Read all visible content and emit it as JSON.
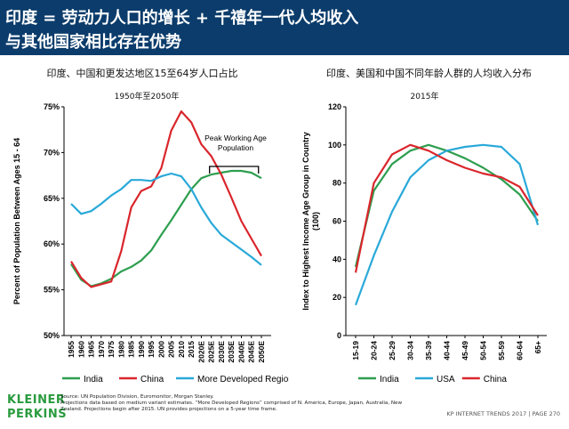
{
  "header": {
    "line1": "印度 = 劳动力人口的增长 + 千禧年一代人均收入",
    "line2": "与其他国家相比存在优势"
  },
  "chart_data": [
    {
      "type": "line",
      "title": "印度、中国和更发达地区15至64岁人口占比",
      "subtitle": "1950年至2050年",
      "ylabel": "Percent of Population Between Ages 15 - 64",
      "ylim": [
        50,
        75
      ],
      "yticks": [
        "50%",
        "55%",
        "60%",
        "65%",
        "70%",
        "75%"
      ],
      "categories": [
        "1955",
        "1960",
        "1965",
        "1970",
        "1975",
        "1980",
        "1985",
        "1990",
        "1995",
        "2000",
        "2005",
        "2010",
        "2015",
        "2020E",
        "2025E",
        "2030E",
        "2035E",
        "2040E",
        "2045E",
        "2050E"
      ],
      "annotation": "Peak Working Age Population",
      "series": [
        {
          "name": "India",
          "color": "#2e9e4f",
          "values": [
            57.8,
            56.1,
            55.4,
            55.7,
            56.2,
            57.0,
            57.5,
            58.2,
            59.3,
            61.0,
            62.6,
            64.3,
            66.0,
            67.2,
            67.6,
            67.8,
            68.0,
            68.0,
            67.8,
            67.2
          ]
        },
        {
          "name": "China",
          "color": "#d9262c",
          "values": [
            58.1,
            56.3,
            55.3,
            55.6,
            55.9,
            59.2,
            64.0,
            65.8,
            66.3,
            68.3,
            72.4,
            74.5,
            73.3,
            70.9,
            69.6,
            67.6,
            65.1,
            62.5,
            60.6,
            58.7
          ]
        },
        {
          "name": "More Developed Regions",
          "color": "#29a9d9",
          "values": [
            64.4,
            63.3,
            63.6,
            64.4,
            65.3,
            66.0,
            67.0,
            67.0,
            66.9,
            67.4,
            67.7,
            67.4,
            66.0,
            64.0,
            62.3,
            61.0,
            60.2,
            59.4,
            58.6,
            57.7
          ]
        }
      ]
    },
    {
      "type": "line",
      "title": "印度、美国和中国不同年龄人群的人均收入分布",
      "subtitle": "2015年",
      "ylabel": "Index to Highest Income Age Group in Country (100)",
      "ylim": [
        0,
        120
      ],
      "yticks": [
        "0",
        "20",
        "40",
        "60",
        "80",
        "100",
        "120"
      ],
      "categories": [
        "15-19",
        "20-24",
        "25-29",
        "30-34",
        "35-39",
        "40-44",
        "45-49",
        "50-54",
        "55-59",
        "60-64",
        "65+"
      ],
      "series": [
        {
          "name": "India",
          "color": "#2e9e4f",
          "values": [
            36,
            76,
            90,
            97,
            100,
            97,
            93,
            88,
            82,
            74,
            60
          ]
        },
        {
          "name": "USA",
          "color": "#29a9d9",
          "values": [
            16,
            42,
            65,
            83,
            92,
            97,
            99,
            100,
            99,
            90,
            58
          ]
        },
        {
          "name": "China",
          "color": "#d9262c",
          "values": [
            33,
            80,
            95,
            100,
            97,
            92,
            88,
            85,
            83,
            78,
            63
          ]
        }
      ]
    }
  ],
  "footer": {
    "logo_line1": "KLEINER",
    "logo_line2": "PERKINS",
    "source": "Source: UN Population Division, Euromonitor, Morgan Stanley.",
    "note": "Projections data based on medium variant estimates. “More Developed Regions” comprised of N. America, Europe, Japan, Australia, New Zealand. Projections begin after 2015. UN provides projections on a 5-year time frame.",
    "right": "KP INTERNET TRENDS 2017  |  PAGE 270"
  }
}
